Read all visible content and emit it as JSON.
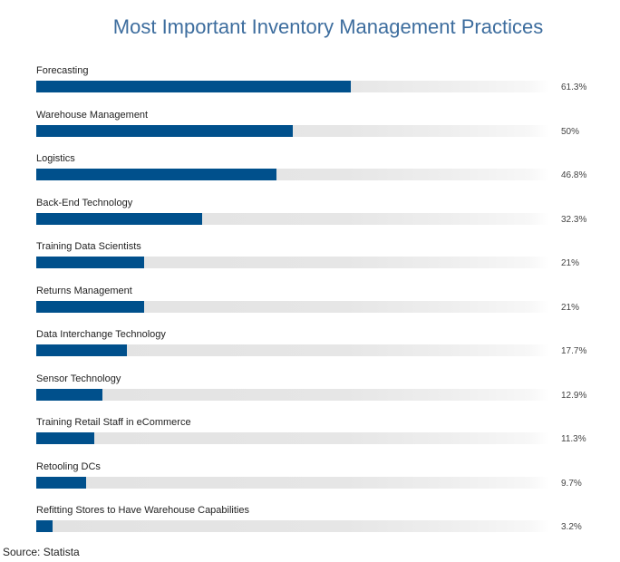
{
  "chart_data": {
    "type": "bar",
    "orientation": "horizontal",
    "title": "Most Important Inventory Management Practices",
    "categories": [
      "Forecasting",
      "Warehouse Management",
      "Logistics",
      "Back-End Technology",
      "Training Data Scientists",
      "Returns Management",
      "Data Interchange Technology",
      "Sensor Technology",
      "Training Retail Staff in eCommerce",
      "Retooling DCs",
      "Refitting Stores to Have Warehouse Capabilities"
    ],
    "values": [
      61.3,
      50,
      46.8,
      32.3,
      21,
      21,
      17.7,
      12.9,
      11.3,
      9.7,
      3.2
    ],
    "value_labels": [
      "61.3%",
      "50%",
      "46.8%",
      "32.3%",
      "21%",
      "21%",
      "17.7%",
      "12.9%",
      "11.3%",
      "9.7%",
      "3.2%"
    ],
    "xlim": [
      0,
      100
    ],
    "bar_color": "#00508c",
    "track_color": "#e4e4e4",
    "grid": false,
    "legend": "none"
  },
  "footer": {
    "source": "Source: Statista"
  }
}
